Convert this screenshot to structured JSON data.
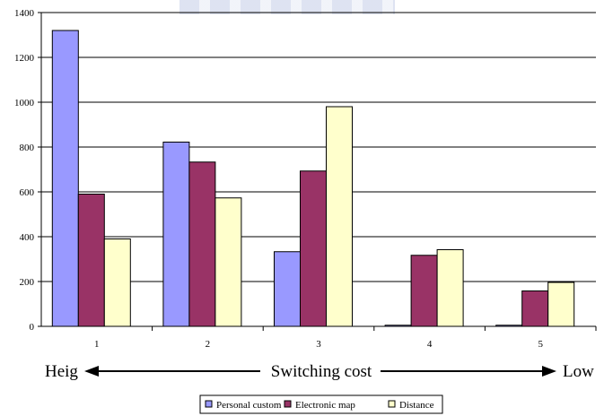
{
  "chart_data": {
    "type": "bar",
    "categories": [
      "1",
      "2",
      "3",
      "4",
      "5"
    ],
    "series": [
      {
        "name": "Personal custom",
        "values": [
          1320,
          822,
          333,
          5,
          5
        ]
      },
      {
        "name": "Electronic map",
        "values": [
          590,
          733,
          693,
          317,
          158
        ]
      },
      {
        "name": "Distance",
        "values": [
          390,
          573,
          980,
          342,
          196
        ]
      }
    ],
    "title": "",
    "xlabel": "Switching cost",
    "ylabel": "",
    "ylim": [
      0,
      1400
    ],
    "yticks": [
      0,
      200,
      400,
      600,
      800,
      1000,
      1200,
      1400
    ],
    "grid": true,
    "legend_position": "bottom",
    "annotations": {
      "left_label": "Heig",
      "right_label": "Low"
    },
    "colors": {
      "Personal custom": "#9999ff",
      "Electronic map": "#993366",
      "Distance": "#ffffcc"
    }
  }
}
